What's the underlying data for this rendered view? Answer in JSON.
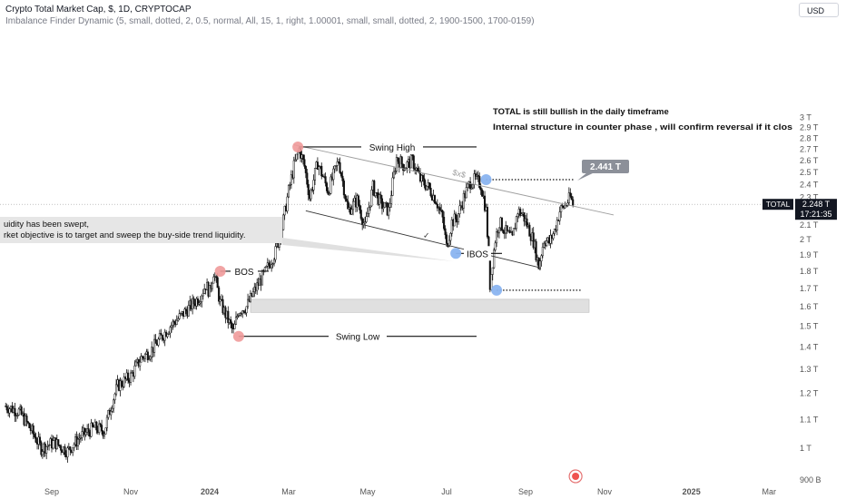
{
  "header": {
    "title": "Crypto Total Market Cap, $, 1D, CRYPTOCAP",
    "indicator": "Imbalance Finder Dynamic (5, small, dotted, 2, 0.5, normal, All, 15, 1, right, 1.00001, small, small, dotted, 2, 1900-1500, 1700-0159)"
  },
  "currency_button": "USD",
  "chart_data": {
    "type": "candlestick",
    "title": "Crypto Total Market Cap, $, 1D, CRYPTOCAP",
    "y_scale": "log",
    "y_ticks": [
      "3 T",
      "2.9 T",
      "2.8 T",
      "2.7 T",
      "2.6 T",
      "2.5 T",
      "2.4 T",
      "2.3 T",
      "2.2 T",
      "2.1 T",
      "2 T",
      "1.9 T",
      "1.8 T",
      "1.7 T",
      "1.6 T",
      "1.5 T",
      "1.4 T",
      "1.3 T",
      "1.2 T",
      "1.1 T",
      "1 T",
      "900 B"
    ],
    "y_tick_values": [
      3.0,
      2.9,
      2.8,
      2.7,
      2.6,
      2.5,
      2.4,
      2.3,
      2.2,
      2.1,
      2.0,
      1.9,
      1.8,
      1.7,
      1.6,
      1.5,
      1.4,
      1.3,
      1.2,
      1.1,
      1.0,
      0.9
    ],
    "x_ticks": [
      "Sep",
      "Nov",
      "2024",
      "Mar",
      "May",
      "Jul",
      "Sep",
      "Nov",
      "2025",
      "Mar"
    ],
    "x_tick_days": [
      -120,
      -60,
      0,
      60,
      120,
      180,
      240,
      300,
      366,
      425
    ],
    "last_price": {
      "label": "TOTAL",
      "value": "2.248 T",
      "countdown": "17:21:35"
    },
    "price_path": [
      [
        -155,
        1.15
      ],
      [
        -145,
        1.13
      ],
      [
        -138,
        1.08
      ],
      [
        -128,
        1.0
      ],
      [
        -118,
        1.02
      ],
      [
        -108,
        0.99
      ],
      [
        -98,
        1.04
      ],
      [
        -88,
        1.07
      ],
      [
        -80,
        1.06
      ],
      [
        -75,
        1.15
      ],
      [
        -70,
        1.23
      ],
      [
        -60,
        1.27
      ],
      [
        -52,
        1.35
      ],
      [
        -45,
        1.38
      ],
      [
        -40,
        1.42
      ],
      [
        -30,
        1.5
      ],
      [
        -22,
        1.55
      ],
      [
        -15,
        1.6
      ],
      [
        -8,
        1.65
      ],
      [
        -3,
        1.72
      ],
      [
        0,
        1.68
      ],
      [
        3,
        1.8
      ],
      [
        8,
        1.62
      ],
      [
        12,
        1.56
      ],
      [
        18,
        1.47
      ],
      [
        22,
        1.58
      ],
      [
        28,
        1.6
      ],
      [
        35,
        1.7
      ],
      [
        42,
        1.79
      ],
      [
        50,
        1.92
      ],
      [
        55,
        2.08
      ],
      [
        60,
        2.35
      ],
      [
        64,
        2.55
      ],
      [
        68,
        2.7
      ],
      [
        72,
        2.55
      ],
      [
        76,
        2.3
      ],
      [
        82,
        2.58
      ],
      [
        90,
        2.35
      ],
      [
        98,
        2.6
      ],
      [
        105,
        2.2
      ],
      [
        112,
        2.28
      ],
      [
        118,
        2.08
      ],
      [
        124,
        2.38
      ],
      [
        130,
        2.25
      ],
      [
        136,
        2.2
      ],
      [
        142,
        2.62
      ],
      [
        148,
        2.55
      ],
      [
        154,
        2.6
      ],
      [
        160,
        2.44
      ],
      [
        166,
        2.38
      ],
      [
        172,
        2.28
      ],
      [
        177,
        2.14
      ],
      [
        180,
        1.95
      ],
      [
        184,
        2.12
      ],
      [
        188,
        2.15
      ],
      [
        193,
        2.3
      ],
      [
        198,
        2.42
      ],
      [
        202,
        2.44
      ],
      [
        206,
        2.4
      ],
      [
        210,
        2.2
      ],
      [
        213,
        1.72
      ],
      [
        217,
        2.0
      ],
      [
        220,
        2.12
      ],
      [
        225,
        2.05
      ],
      [
        230,
        2.0
      ],
      [
        234,
        2.2
      ],
      [
        238,
        2.17
      ],
      [
        242,
        2.08
      ],
      [
        246,
        1.99
      ],
      [
        250,
        1.83
      ],
      [
        254,
        2.0
      ],
      [
        258,
        1.98
      ],
      [
        262,
        2.06
      ],
      [
        266,
        2.2
      ],
      [
        270,
        2.24
      ],
      [
        274,
        2.3
      ],
      [
        276,
        2.248
      ]
    ],
    "annotations": {
      "swing_high": "Swing High",
      "swing_low": "Swing Low",
      "bos": "BOS",
      "ibos": "IBOS",
      "total_bullish": "TOTAL is still bullish in the daily timeframe",
      "internal_structure": "Internal structure in counter phase , will confirm reversal if it clos",
      "liquidity_line1": "uidity has been swept,",
      "liquidity_line2": "rket objective is to target and sweep the buy-side trend liquidity.",
      "price_callout": "2.441 T",
      "trend_label": "$x$",
      "check_mark": "✓"
    },
    "key_levels": {
      "swing_high": 2.72,
      "swing_low": 1.45,
      "bos": 1.8,
      "ibos": 1.91,
      "sell_side_low": 1.69,
      "callout_level": 2.44
    },
    "imbalance_zone": [
      1.57,
      1.64
    ]
  }
}
